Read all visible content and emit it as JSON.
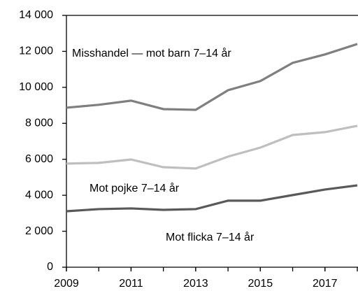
{
  "chart_data": {
    "type": "line",
    "x": [
      2009,
      2010,
      2011,
      2012,
      2013,
      2014,
      2015,
      2016,
      2017,
      2018
    ],
    "series": [
      {
        "name": "Misshandel — mot barn 7–14 år",
        "color": "#7f7f7f",
        "values": [
          8870,
          9030,
          9260,
          8790,
          8750,
          9840,
          10350,
          11360,
          11830,
          12410
        ]
      },
      {
        "name": "Mot pojke 7–14 år",
        "color": "#bfbfbf",
        "values": [
          5760,
          5800,
          5990,
          5560,
          5490,
          6150,
          6650,
          7350,
          7510,
          7860
        ]
      },
      {
        "name": "Mot flicka 7–14 år",
        "color": "#595959",
        "values": [
          3110,
          3230,
          3270,
          3190,
          3230,
          3700,
          3700,
          4010,
          4320,
          4550
        ]
      }
    ],
    "xlim": [
      2009,
      2018
    ],
    "xticks": [
      2009,
      2011,
      2013,
      2015,
      2017
    ],
    "ylim": [
      0,
      14000
    ],
    "yticks": [
      0,
      {
        "value": 2000,
        "label": "2 000"
      },
      {
        "value": 4000,
        "label": "4 000"
      },
      {
        "value": 6000,
        "label": "6 000"
      },
      {
        "value": 8000,
        "label": "8 000"
      },
      {
        "value": 10000,
        "label": "10 000"
      },
      {
        "value": 12000,
        "label": "12 000"
      },
      {
        "value": 14000,
        "label": "14 000"
      }
    ]
  }
}
